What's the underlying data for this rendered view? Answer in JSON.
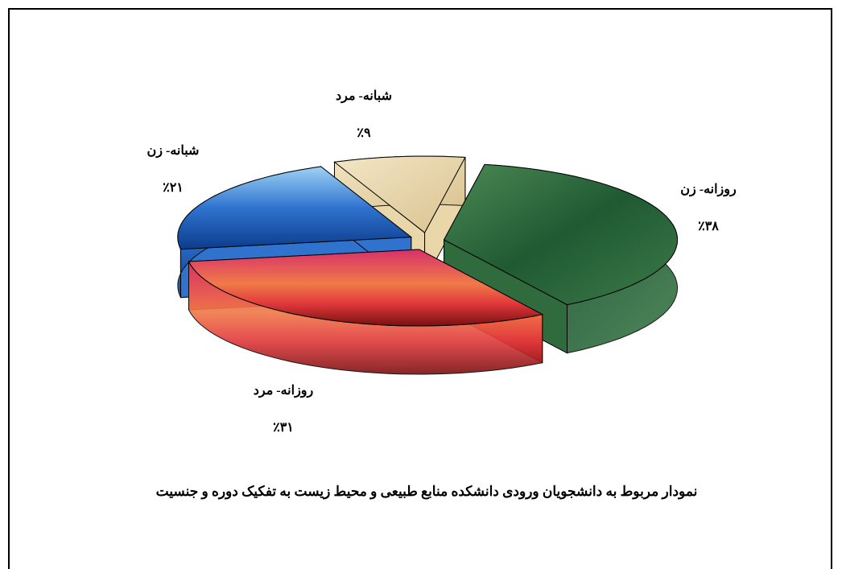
{
  "chart_data": {
    "type": "pie3d",
    "title": "نمودار مربوط به دانشجویان ورودی دانشکده منابع طبیعی و محیط زیست به تفکیک دوره و جنسیت",
    "categories": [
      "روزانه- زن",
      "روزانه- مرد",
      "شبانه- زن",
      "شبانه- مرد"
    ],
    "values": [
      38,
      31,
      21,
      9
    ],
    "value_labels": [
      "٪۳۸",
      "٪۳۱",
      "٪۲۱",
      "٪۹"
    ],
    "colors": [
      "#2f6b3c",
      "#e23a3c",
      "#2f73cf",
      "#e9d6a9"
    ]
  }
}
